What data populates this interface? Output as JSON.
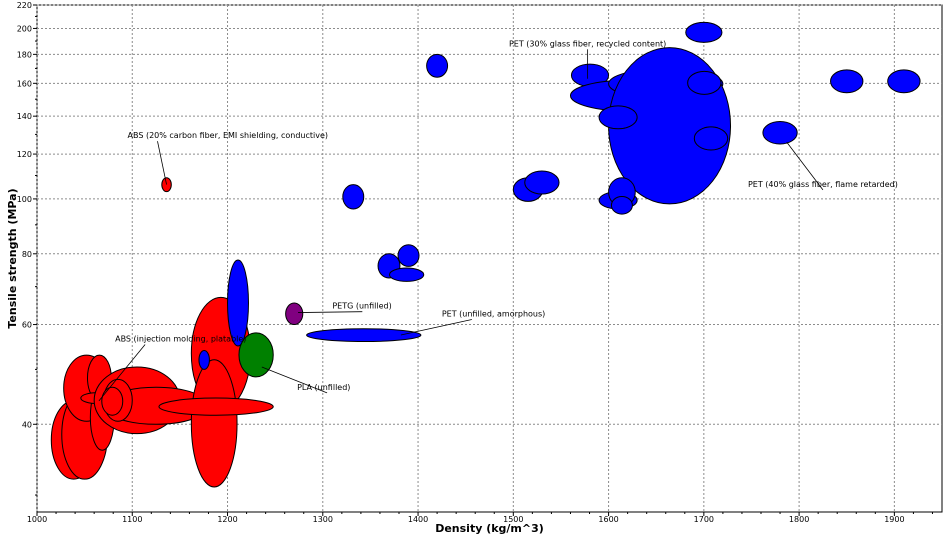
{
  "chart_data": {
    "type": "scatter",
    "title": "",
    "xlabel": "Density (kg/m^3)",
    "ylabel": "Tensile strength (MPa)",
    "xlim": [
      1000,
      1950
    ],
    "ylim": [
      28,
      220
    ],
    "yscale": "log",
    "grid": true,
    "x_ticks": [
      1000,
      1100,
      1200,
      1300,
      1400,
      1500,
      1600,
      1700,
      1800,
      1900
    ],
    "y_ticks": [
      40,
      60,
      80,
      100,
      120,
      140,
      160,
      180,
      200,
      220
    ],
    "series": [
      {
        "name": "ABS",
        "color": "#ff0000",
        "points": [
          {
            "x": 1038,
            "y": 37.5,
            "x_min": 1015,
            "x_max": 1062,
            "y_min": 32,
            "y_max": 44
          },
          {
            "x": 1050,
            "y": 38.5,
            "x_min": 1026,
            "x_max": 1074,
            "y_min": 32,
            "y_max": 46
          },
          {
            "x": 1056,
            "y": 46,
            "x_min": 1046,
            "x_max": 1066,
            "y_min": 41,
            "y_max": 52
          },
          {
            "x": 1052,
            "y": 46,
            "x_min": 1028,
            "x_max": 1076,
            "y_min": 40.5,
            "y_max": 53
          },
          {
            "x": 1068,
            "y": 41.5,
            "x_min": 1056,
            "x_max": 1081,
            "y_min": 36,
            "y_max": 47
          },
          {
            "x": 1066,
            "y": 48.5,
            "x_min": 1053,
            "x_max": 1078,
            "y_min": 44,
            "y_max": 53
          },
          {
            "x": 1064,
            "y": 44.5,
            "x_min": 1046,
            "x_max": 1082,
            "y_min": 43.5,
            "y_max": 45.5
          },
          {
            "x": 1107,
            "y": 44,
            "x_min": 1060,
            "x_max": 1150,
            "y_min": 38.5,
            "y_max": 50.5
          },
          {
            "x": 1125,
            "y": 43,
            "x_min": 1070,
            "x_max": 1180,
            "y_min": 40,
            "y_max": 46.5
          },
          {
            "x": 1085,
            "y": 44,
            "x_min": 1070,
            "x_max": 1100,
            "y_min": 40.5,
            "y_max": 48
          },
          {
            "x": 1078,
            "y": 44,
            "x_min": 1068,
            "x_max": 1090,
            "y_min": 41.5,
            "y_max": 46.5
          },
          {
            "x": 1193,
            "y": 51,
            "x_min": 1162,
            "x_max": 1224,
            "y_min": 42.5,
            "y_max": 67
          },
          {
            "x": 1185,
            "y": 40.5,
            "x_min": 1162,
            "x_max": 1210,
            "y_min": 31,
            "y_max": 52
          },
          {
            "x": 1188,
            "y": 43,
            "x_min": 1128,
            "x_max": 1248,
            "y_min": 41.5,
            "y_max": 44.5
          },
          {
            "x": 1136,
            "y": 106,
            "x_min": 1131,
            "x_max": 1141,
            "y_min": 103,
            "y_max": 109
          }
        ]
      },
      {
        "name": "PET",
        "color": "#0000ff",
        "points": [
          {
            "x": 1175,
            "y": 52,
            "x_min": 1170,
            "x_max": 1181,
            "y_min": 50,
            "y_max": 54
          },
          {
            "x": 1211,
            "y": 66,
            "x_min": 1200,
            "x_max": 1222,
            "y_min": 55,
            "y_max": 78
          },
          {
            "x": 1232,
            "y": 51.5,
            "x_min": 1222,
            "x_max": 1242,
            "y_min": 49.5,
            "y_max": 54
          },
          {
            "x": 1332,
            "y": 101,
            "x_min": 1321,
            "x_max": 1343,
            "y_min": 96,
            "y_max": 106
          },
          {
            "x": 1343,
            "y": 57.5,
            "x_min": 1283,
            "x_max": 1403,
            "y_min": 56,
            "y_max": 59
          },
          {
            "x": 1369,
            "y": 76,
            "x_min": 1358,
            "x_max": 1381,
            "y_min": 72.5,
            "y_max": 80
          },
          {
            "x": 1388,
            "y": 73.5,
            "x_min": 1370,
            "x_max": 1406,
            "y_min": 71.5,
            "y_max": 75.5
          },
          {
            "x": 1390,
            "y": 79.5,
            "x_min": 1379,
            "x_max": 1401,
            "y_min": 76,
            "y_max": 83
          },
          {
            "x": 1420,
            "y": 172,
            "x_min": 1409,
            "x_max": 1431,
            "y_min": 164,
            "y_max": 180
          },
          {
            "x": 1515,
            "y": 104,
            "x_min": 1500,
            "x_max": 1531,
            "y_min": 99,
            "y_max": 109
          },
          {
            "x": 1530,
            "y": 107,
            "x_min": 1512,
            "x_max": 1548,
            "y_min": 102,
            "y_max": 112
          },
          {
            "x": 1580,
            "y": 165,
            "x_min": 1561,
            "x_max": 1600,
            "y_min": 158,
            "y_max": 173
          },
          {
            "x": 1620,
            "y": 152,
            "x_min": 1560,
            "x_max": 1680,
            "y_min": 143,
            "y_max": 162
          },
          {
            "x": 1660,
            "y": 159,
            "x_min": 1600,
            "x_max": 1720,
            "y_min": 150,
            "y_max": 170
          },
          {
            "x": 1663,
            "y": 134,
            "x_min": 1600,
            "x_max": 1728,
            "y_min": 98,
            "y_max": 185
          },
          {
            "x": 1610,
            "y": 99.5,
            "x_min": 1590,
            "x_max": 1630,
            "y_min": 96,
            "y_max": 103
          },
          {
            "x": 1614,
            "y": 103,
            "x_min": 1600,
            "x_max": 1628,
            "y_min": 97,
            "y_max": 109
          },
          {
            "x": 1614,
            "y": 97.5,
            "x_min": 1603,
            "x_max": 1625,
            "y_min": 94,
            "y_max": 101
          },
          {
            "x": 1610,
            "y": 139,
            "x_min": 1590,
            "x_max": 1630,
            "y_min": 133,
            "y_max": 146
          },
          {
            "x": 1700,
            "y": 197,
            "x_min": 1681,
            "x_max": 1719,
            "y_min": 189,
            "y_max": 205
          },
          {
            "x": 1700,
            "y": 160,
            "x_min": 1683,
            "x_max": 1718,
            "y_min": 153,
            "y_max": 168
          },
          {
            "x": 1707,
            "y": 128,
            "x_min": 1690,
            "x_max": 1725,
            "y_min": 122,
            "y_max": 134
          },
          {
            "x": 1780,
            "y": 131,
            "x_min": 1762,
            "x_max": 1798,
            "y_min": 125,
            "y_max": 137
          },
          {
            "x": 1850,
            "y": 161,
            "x_min": 1833,
            "x_max": 1867,
            "y_min": 154,
            "y_max": 169
          },
          {
            "x": 1910,
            "y": 161,
            "x_min": 1893,
            "x_max": 1927,
            "y_min": 154,
            "y_max": 169
          }
        ]
      },
      {
        "name": "PLA",
        "color": "#008000",
        "points": [
          {
            "x": 1230,
            "y": 53,
            "x_min": 1212,
            "x_max": 1248,
            "y_min": 48.5,
            "y_max": 58
          }
        ]
      },
      {
        "name": "PETG",
        "color": "#800080",
        "points": [
          {
            "x": 1270,
            "y": 62.5,
            "x_min": 1261,
            "x_max": 1279,
            "y_min": 60,
            "y_max": 65.5
          }
        ]
      }
    ],
    "annotations": [
      {
        "text": "ABS (20% carbon fiber, EMI shielding, conductive)",
        "x": 1136,
        "y": 106,
        "text_x": 1095,
        "text_y": 128,
        "anchor": "start"
      },
      {
        "text": "ABS (injection molding, platable)",
        "x": 1065,
        "y": 44,
        "text_x": 1082,
        "text_y": 56,
        "anchor": "start"
      },
      {
        "text": "PETG (unfilled)",
        "x": 1274,
        "y": 63,
        "text_x": 1310,
        "text_y": 64,
        "anchor": "start"
      },
      {
        "text": "PET (unfilled, amorphous)",
        "x": 1382,
        "y": 57.5,
        "text_x": 1425,
        "text_y": 62,
        "anchor": "start"
      },
      {
        "text": "PLA (unfilled)",
        "x": 1236,
        "y": 50.5,
        "text_x": 1273,
        "text_y": 46,
        "anchor": "start"
      },
      {
        "text": "PET (30% glass fiber, recycled content)",
        "x": 1578,
        "y": 163,
        "text_x": 1578,
        "text_y": 186,
        "anchor": "middle"
      },
      {
        "text": "PET (40% glass fiber, flame retarded)",
        "x": 1787,
        "y": 126,
        "text_x": 1825,
        "text_y": 105,
        "anchor": "middle"
      }
    ]
  }
}
